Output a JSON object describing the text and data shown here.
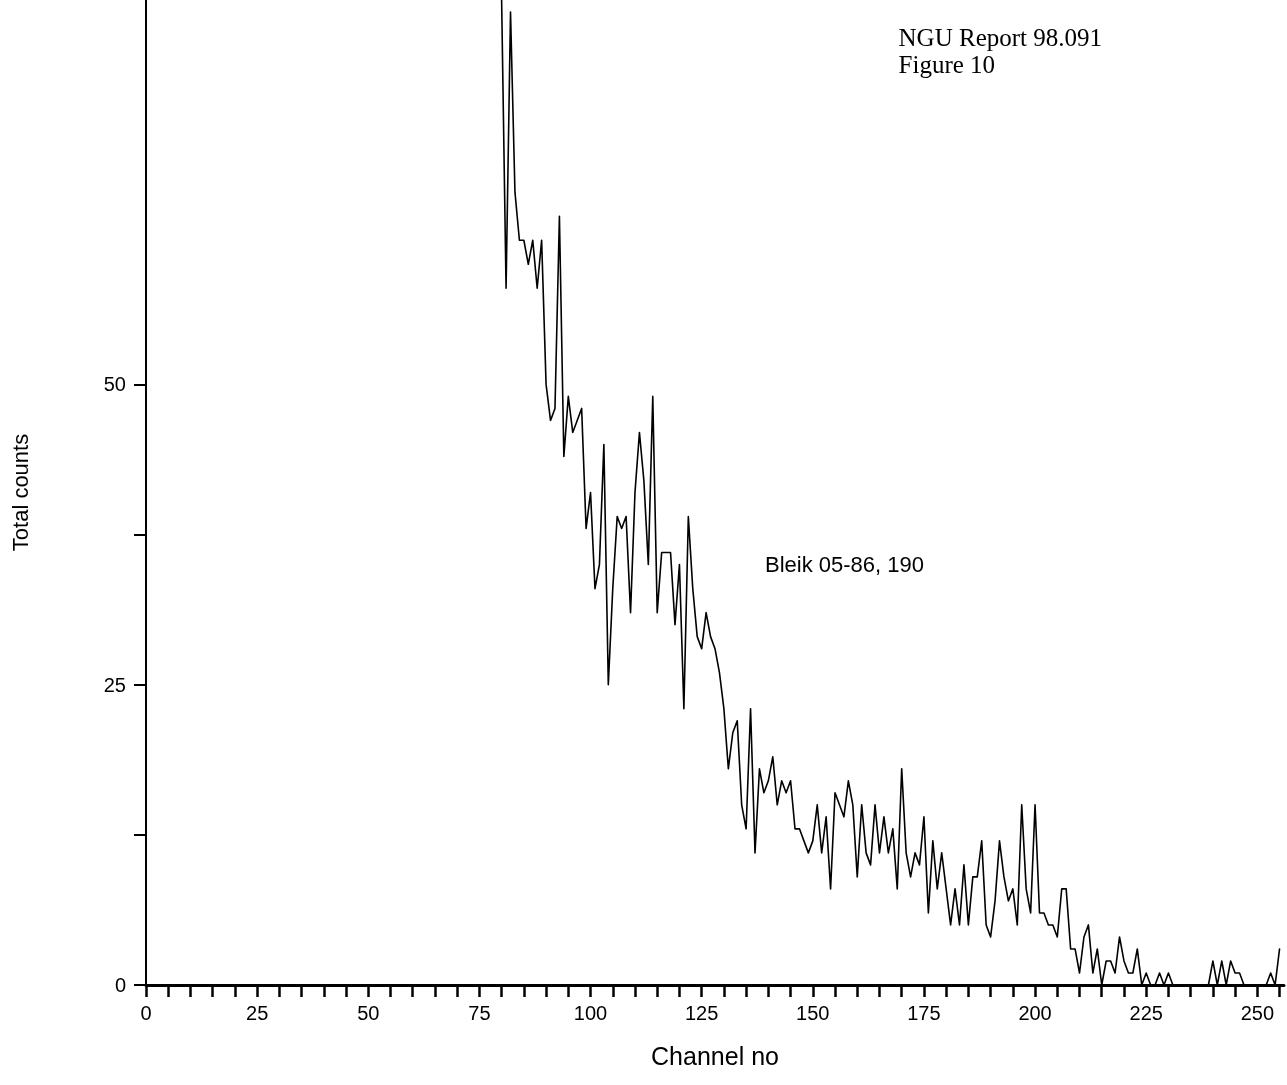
{
  "chart_data": {
    "type": "line",
    "title": "NGU Report 98.091",
    "subtitle": "Figure 10",
    "xlabel": "Channel no",
    "ylabel": "Total counts",
    "annotations": [
      "Bleik 05-86, 190"
    ],
    "xlim": [
      0,
      256
    ],
    "ylim": [
      0,
      82
    ],
    "xticks": [
      0,
      {
        "value": 5,
        "label": null
      },
      {
        "value": 10,
        "label": null
      },
      {
        "value": 15,
        "label": null
      },
      {
        "value": 20,
        "label": null
      },
      25,
      {
        "value": 30,
        "label": null
      },
      {
        "value": 35,
        "label": null
      },
      {
        "value": 40,
        "label": null
      },
      {
        "value": 45,
        "label": null
      },
      50,
      {
        "value": 55,
        "label": null
      },
      {
        "value": 60,
        "label": null
      },
      {
        "value": 65,
        "label": null
      },
      {
        "value": 70,
        "label": null
      },
      75,
      {
        "value": 80,
        "label": null
      },
      {
        "value": 85,
        "label": null
      },
      {
        "value": 90,
        "label": null
      },
      {
        "value": 95,
        "label": null
      },
      100,
      {
        "value": 105,
        "label": null
      },
      {
        "value": 110,
        "label": null
      },
      {
        "value": 115,
        "label": null
      },
      {
        "value": 120,
        "label": null
      },
      125,
      {
        "value": 130,
        "label": null
      },
      {
        "value": 135,
        "label": null
      },
      {
        "value": 140,
        "label": null
      },
      {
        "value": 145,
        "label": null
      },
      150,
      {
        "value": 155,
        "label": null
      },
      {
        "value": 160,
        "label": null
      },
      {
        "value": 165,
        "label": null
      },
      {
        "value": 170,
        "label": null
      },
      175,
      {
        "value": 180,
        "label": null
      },
      {
        "value": 185,
        "label": null
      },
      {
        "value": 190,
        "label": null
      },
      {
        "value": 195,
        "label": null
      },
      200,
      {
        "value": 205,
        "label": null
      },
      {
        "value": 210,
        "label": null
      },
      {
        "value": 215,
        "label": null
      },
      {
        "value": 220,
        "label": null
      },
      225,
      {
        "value": 230,
        "label": null
      },
      {
        "value": 235,
        "label": null
      },
      {
        "value": 240,
        "label": null
      },
      {
        "value": 245,
        "label": null
      },
      250,
      {
        "value": 255,
        "label": null
      }
    ],
    "yticks": [
      0,
      {
        "value": 12.5,
        "label": null
      },
      25,
      {
        "value": 37.5,
        "label": null
      },
      50
    ],
    "grid": false,
    "marker": "none",
    "line_style": "solid",
    "series": [
      {
        "color": "#000000",
        "x": [
          80,
          81,
          82,
          83,
          84,
          85,
          86,
          87,
          88,
          89,
          90,
          91,
          92,
          93,
          94,
          95,
          96,
          97,
          98,
          99,
          100,
          101,
          102,
          103,
          104,
          105,
          106,
          107,
          108,
          109,
          110,
          111,
          112,
          113,
          114,
          115,
          116,
          117,
          118,
          119,
          120,
          121,
          122,
          123,
          124,
          125,
          126,
          127,
          128,
          129,
          130,
          131,
          132,
          133,
          134,
          135,
          136,
          137,
          138,
          139,
          140,
          141,
          142,
          143,
          144,
          145,
          146,
          147,
          148,
          149,
          150,
          151,
          152,
          153,
          154,
          155,
          156,
          157,
          158,
          159,
          160,
          161,
          162,
          163,
          164,
          165,
          166,
          167,
          168,
          169,
          170,
          171,
          172,
          173,
          174,
          175,
          176,
          177,
          178,
          179,
          180,
          181,
          182,
          183,
          184,
          185,
          186,
          187,
          188,
          189,
          190,
          191,
          192,
          193,
          194,
          195,
          196,
          197,
          198,
          199,
          200,
          201,
          202,
          203,
          204,
          205,
          206,
          207,
          208,
          209,
          210,
          211,
          212,
          213,
          214,
          215,
          216,
          217,
          218,
          219,
          220,
          221,
          222,
          223,
          224,
          225,
          226,
          227,
          228,
          229,
          230,
          231,
          232,
          233,
          234,
          235,
          236,
          237,
          238,
          239,
          240,
          241,
          242,
          243,
          244,
          245,
          246,
          247,
          248,
          249,
          250,
          251,
          252,
          253,
          254,
          255
        ],
        "values": [
          82,
          58,
          81,
          66,
          62,
          62,
          60,
          62,
          58,
          62,
          50,
          47,
          48,
          64,
          44,
          49,
          46,
          47,
          48,
          38,
          41,
          33,
          35,
          45,
          25,
          33,
          39,
          38,
          39,
          31,
          41,
          46,
          42,
          35,
          49,
          31,
          36,
          36,
          36,
          30,
          35,
          23,
          39,
          33,
          29,
          28,
          31,
          29,
          28,
          26,
          23,
          18,
          21,
          22,
          15,
          13,
          23,
          11,
          18,
          16,
          17,
          19,
          15,
          17,
          16,
          17,
          13,
          13,
          12,
          11,
          12,
          15,
          11,
          14,
          8,
          16,
          15,
          14,
          17,
          15,
          9,
          15,
          11,
          10,
          15,
          11,
          14,
          11,
          13,
          8,
          18,
          11,
          9,
          11,
          10,
          14,
          6,
          12,
          8,
          11,
          8,
          5,
          8,
          5,
          10,
          5,
          9,
          9,
          12,
          5,
          4,
          7,
          12,
          9,
          7,
          8,
          5,
          15,
          8,
          6,
          15,
          6,
          6,
          5,
          5,
          4,
          8,
          8,
          3,
          3,
          1,
          4,
          5,
          1,
          3,
          0,
          2,
          2,
          1,
          4,
          2,
          1,
          1,
          3,
          0,
          1,
          0,
          0,
          1,
          0,
          1,
          0,
          0,
          0,
          0,
          0,
          0,
          0,
          0,
          0,
          2,
          0,
          2,
          0,
          2,
          1,
          1,
          0,
          0,
          0,
          0,
          0,
          0,
          1,
          0,
          3
        ]
      }
    ]
  }
}
